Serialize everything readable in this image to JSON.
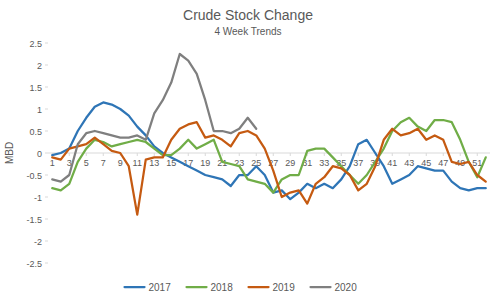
{
  "chart_data": {
    "type": "line",
    "title": "Crude Stock Change",
    "subtitle": "4 Week Trends",
    "y_label": "MBD",
    "x": [
      1,
      2,
      3,
      4,
      5,
      6,
      7,
      8,
      9,
      10,
      11,
      12,
      13,
      14,
      15,
      16,
      17,
      18,
      19,
      20,
      21,
      22,
      23,
      24,
      25,
      26,
      27,
      28,
      29,
      30,
      31,
      32,
      33,
      34,
      35,
      36,
      37,
      38,
      39,
      40,
      41,
      42,
      43,
      44,
      45,
      46,
      47,
      48,
      49,
      50,
      51,
      52
    ],
    "xlim": [
      0.5,
      52.5
    ],
    "xticks": [
      1,
      3,
      5,
      7,
      9,
      11,
      13,
      15,
      17,
      19,
      21,
      23,
      25,
      27,
      29,
      31,
      33,
      35,
      37,
      39,
      41,
      43,
      45,
      47,
      49,
      51
    ],
    "ylim": [
      -2.5,
      2.5
    ],
    "yticks": [
      -2.5,
      -2,
      -1.5,
      -1,
      -0.5,
      0,
      0.5,
      1,
      1.5,
      2,
      2.5
    ],
    "grid": false,
    "legend": "bottom",
    "series": [
      {
        "name": "2017",
        "color": "#2e75b6",
        "values": [
          -0.05,
          0.0,
          0.1,
          0.5,
          0.8,
          1.05,
          1.15,
          1.1,
          1.0,
          0.85,
          0.6,
          0.4,
          0.15,
          0.0,
          -0.1,
          -0.2,
          -0.3,
          -0.4,
          -0.5,
          -0.55,
          -0.6,
          -0.75,
          -0.5,
          -0.5,
          -0.3,
          -0.5,
          -0.9,
          -0.85,
          -1.05,
          -0.9,
          -0.7,
          -0.8,
          -0.7,
          -0.8,
          -0.6,
          -0.3,
          0.2,
          0.3,
          0.0,
          -0.3,
          -0.7,
          -0.6,
          -0.5,
          -0.3,
          -0.35,
          -0.4,
          -0.4,
          -0.65,
          -0.8,
          -0.85,
          -0.8,
          -0.8
        ]
      },
      {
        "name": "2018",
        "color": "#70ad47",
        "values": [
          -0.8,
          -0.85,
          -0.7,
          -0.2,
          0.1,
          0.3,
          0.25,
          0.15,
          0.2,
          0.25,
          0.3,
          0.25,
          0.1,
          -0.05,
          -0.05,
          0.1,
          0.3,
          0.1,
          0.2,
          0.3,
          -0.2,
          -0.25,
          -0.3,
          -0.6,
          -0.65,
          -0.7,
          -0.9,
          -0.6,
          -0.5,
          -0.5,
          0.05,
          0.1,
          0.1,
          -0.1,
          -0.3,
          -0.5,
          -0.7,
          -0.5,
          -0.2,
          0.1,
          0.5,
          0.7,
          0.8,
          0.6,
          0.5,
          0.75,
          0.75,
          0.7,
          0.3,
          -0.2,
          -0.55,
          -0.1
        ]
      },
      {
        "name": "2019",
        "color": "#c55a11",
        "values": [
          -0.1,
          -0.15,
          0.1,
          0.15,
          0.2,
          0.35,
          0.2,
          0.05,
          0.0,
          -0.3,
          -1.4,
          -0.15,
          -0.1,
          -0.1,
          0.3,
          0.55,
          0.65,
          0.7,
          0.35,
          0.4,
          0.3,
          0.15,
          0.45,
          0.5,
          0.4,
          0.1,
          -0.4,
          -1.0,
          -0.9,
          -0.85,
          -1.15,
          -0.7,
          -0.55,
          -0.3,
          -0.35,
          -0.5,
          -0.85,
          -0.7,
          -0.3,
          0.3,
          0.55,
          0.4,
          0.45,
          0.55,
          0.3,
          0.4,
          0.3,
          -0.2,
          -0.25,
          -0.2,
          -0.5,
          -0.65
        ]
      },
      {
        "name": "2020",
        "color": "#7f7f7f",
        "values": [
          -0.6,
          -0.65,
          -0.5,
          0.2,
          0.45,
          0.5,
          0.45,
          0.4,
          0.35,
          0.35,
          0.4,
          0.3,
          0.9,
          1.2,
          1.6,
          2.25,
          2.1,
          1.8,
          1.2,
          0.5,
          0.5,
          0.45,
          0.55,
          0.8,
          0.55,
          null,
          null,
          null,
          null,
          null,
          null,
          null,
          null,
          null,
          null,
          null,
          null,
          null,
          null,
          null,
          null,
          null,
          null,
          null,
          null,
          null,
          null,
          null,
          null,
          null,
          null,
          null
        ]
      }
    ]
  }
}
